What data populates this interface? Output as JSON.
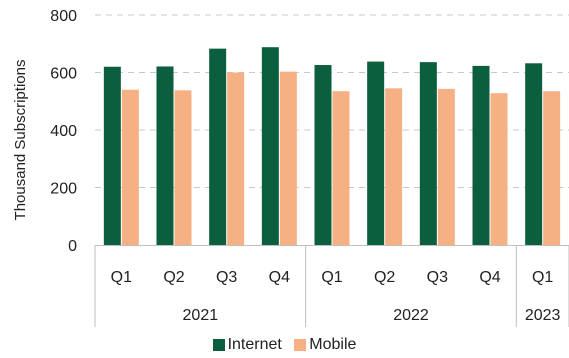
{
  "chart_data": {
    "type": "bar",
    "ylabel": "Thousand Subscriptions",
    "ylim": [
      0,
      800
    ],
    "yticks": [
      0,
      200,
      400,
      600,
      800
    ],
    "grid": true,
    "legend_position": "bottom",
    "categories": [
      "Q1",
      "Q2",
      "Q3",
      "Q4",
      "Q1",
      "Q2",
      "Q3",
      "Q4",
      "Q1"
    ],
    "groups": [
      {
        "label": "2021",
        "count": 4
      },
      {
        "label": "2022",
        "count": 4
      },
      {
        "label": "2023",
        "count": 1
      }
    ],
    "series": [
      {
        "name": "Internet",
        "color": "#0b5e3e",
        "values": [
          620,
          621,
          683,
          688,
          626,
          638,
          636,
          623,
          632
        ]
      },
      {
        "name": "Mobile",
        "color": "#f5b183",
        "values": [
          540,
          538,
          600,
          603,
          535,
          545,
          543,
          528,
          535
        ]
      }
    ]
  }
}
